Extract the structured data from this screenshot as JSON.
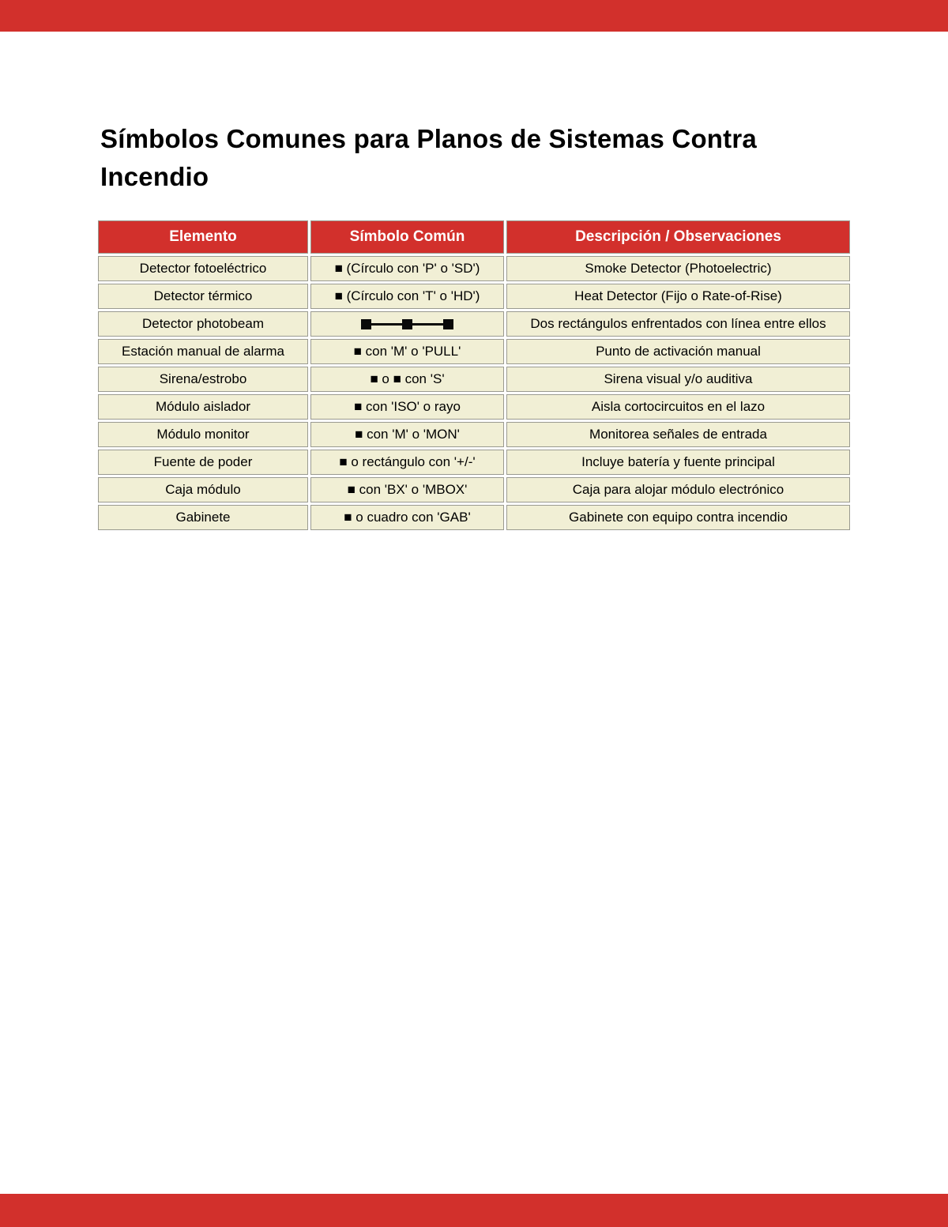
{
  "page": {
    "title": "Símbolos Comunes para Planos de Sistemas Contra Incendio"
  },
  "colors": {
    "accent_red": "#d2302c",
    "cell_background": "#f1efd5",
    "cell_border": "#9a9a90",
    "header_text": "#ffffff"
  },
  "table": {
    "headers": [
      "Elemento",
      "Símbolo Común",
      "Descripción / Observaciones"
    ],
    "rows": [
      {
        "elemento": "Detector fotoeléctrico",
        "simbolo": "■ (Círculo con 'P' o 'SD')",
        "descripcion": "Smoke Detector (Photoelectric)"
      },
      {
        "elemento": "Detector térmico",
        "simbolo": "■ (Círculo con 'T' o 'HD')",
        "descripcion": "Heat Detector (Fijo o Rate-of-Rise)"
      },
      {
        "elemento": "Detector photobeam",
        "simbolo": "",
        "symbol_graphic": "photobeam",
        "descripcion": "Dos rectángulos enfrentados con línea entre ellos"
      },
      {
        "elemento": "Estación manual de alarma",
        "simbolo": "■ con 'M' o 'PULL'",
        "descripcion": "Punto de activación manual"
      },
      {
        "elemento": "Sirena/estrobo",
        "simbolo": "■ o ■ con 'S'",
        "descripcion": "Sirena visual y/o auditiva"
      },
      {
        "elemento": "Módulo aislador",
        "simbolo": "■ con 'ISO' o rayo",
        "descripcion": "Aisla cortocircuitos en el lazo"
      },
      {
        "elemento": "Módulo monitor",
        "simbolo": "■ con 'M' o 'MON'",
        "descripcion": "Monitorea señales de entrada"
      },
      {
        "elemento": "Fuente de poder",
        "simbolo": "■ o rectángulo con '+/-'",
        "descripcion": "Incluye batería y fuente principal"
      },
      {
        "elemento": "Caja módulo",
        "simbolo": "■ con 'BX' o 'MBOX'",
        "descripcion": "Caja para alojar módulo electrónico"
      },
      {
        "elemento": "Gabinete",
        "simbolo": "■ o cuadro con 'GAB'",
        "descripcion": "Gabinete con equipo contra incendio"
      }
    ]
  }
}
